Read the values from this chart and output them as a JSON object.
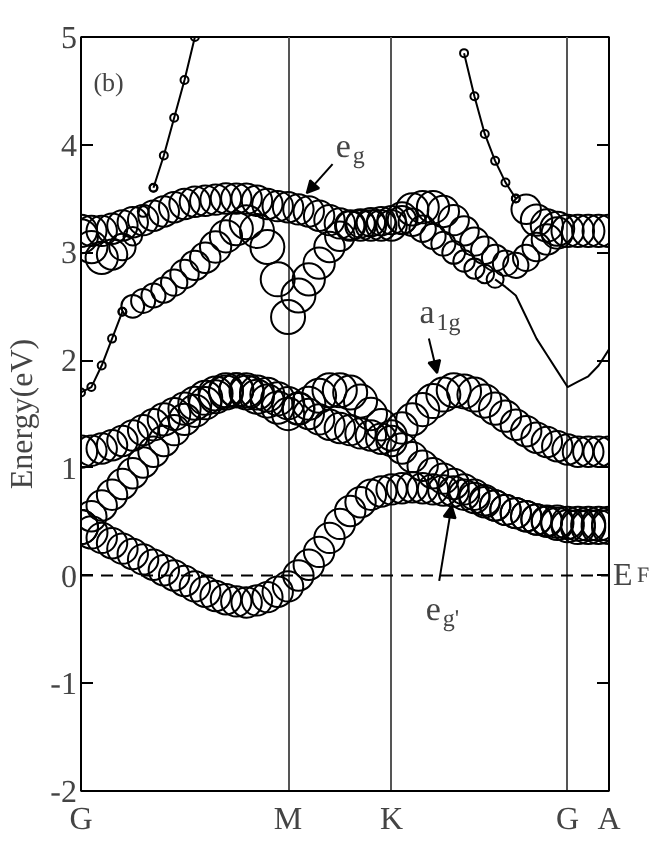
{
  "chart_data": {
    "type": "bubble",
    "ylabel": "Energy(eV)",
    "categories": [
      "G",
      null,
      null,
      null,
      null,
      null,
      null,
      null,
      null,
      null,
      null,
      null,
      null,
      null,
      null,
      null,
      null,
      null,
      null,
      null,
      "M",
      null,
      null,
      null,
      null,
      null,
      null,
      null,
      null,
      null,
      "K",
      null,
      null,
      null,
      null,
      null,
      null,
      null,
      null,
      null,
      null,
      null,
      null,
      null,
      null,
      null,
      null,
      "G",
      null,
      null,
      null,
      "A"
    ],
    "ylim": [
      -2,
      5
    ],
    "yticks": [
      -2,
      -1,
      0,
      1,
      2,
      3,
      4,
      5
    ],
    "grid": "x",
    "ref_lines": [
      {
        "axis": "y",
        "value": 0,
        "label": "E$_{F}$",
        "line_style": "dashed",
        "color": "#000000"
      }
    ],
    "annotations": [
      "(b)",
      "e$_{g}$",
      "a$_{1g}$",
      {
        "text": "e$_{g'}$",
        "y": 0.65
      }
    ],
    "series": [
      {
        "color": "#000000",
        "values": [
          0.45,
          0.4,
          0.35,
          0.3,
          0.25,
          0.2,
          0.15,
          0.1,
          0.05,
          0,
          -0.05,
          -0.1,
          -0.15,
          -0.19,
          -0.22,
          -0.24,
          -0.25,
          -0.23,
          -0.2,
          -0.15,
          -0.1,
          0,
          0.1,
          0.22,
          0.35,
          0.48,
          0.6,
          0.68,
          0.75,
          0.78,
          0.8,
          0.81,
          0.82,
          0.81,
          0.8,
          0.79,
          0.78,
          0.75,
          0.72,
          0.68,
          0.65,
          0.61,
          0.58,
          0.55,
          0.52,
          0.5,
          0.48,
          0.46,
          0.45,
          0.45,
          0.45,
          0.45
        ],
        "sizes": [
          1,
          0.9,
          0.8,
          0.8,
          0.8,
          0.8,
          0.8,
          0.8,
          0.8,
          0.8,
          0.8,
          0.8,
          0.8,
          0.8,
          0.8,
          0.8,
          0.8,
          0.8,
          0.8,
          0.8,
          0.8,
          0.8,
          0.8,
          0.8,
          0.8,
          0.8,
          0.8,
          0.8,
          0.8,
          0.8,
          0.8,
          0.8,
          0.8,
          0.8,
          0.8,
          0.8,
          0.8,
          0.8,
          0.8,
          0.8,
          0.8,
          0.8,
          0.8,
          0.8,
          0.8,
          0.8,
          0.9,
          0.9,
          1,
          1,
          1,
          1
        ]
      },
      {
        "color": "#000000",
        "values": [
          0.45,
          0.55,
          0.65,
          0.75,
          0.85,
          0.95,
          1.05,
          1.15,
          1.25,
          1.35,
          1.45,
          1.53,
          1.6,
          1.66,
          1.7,
          1.72,
          1.72,
          1.7,
          1.68,
          1.64,
          1.6,
          1.55,
          1.5,
          1.45,
          1.4,
          1.37,
          1.35,
          1.32,
          1.3,
          1.27,
          1.25,
          1.18,
          1.1,
          1.02,
          0.95,
          0.9,
          0.85,
          0.8,
          0.75,
          0.7,
          0.65,
          0.61,
          0.58,
          0.55,
          0.52,
          0.51,
          0.5,
          0.49,
          0.48,
          0.48,
          0.48,
          0.48
        ],
        "sizes": [
          1,
          0.8,
          0.8,
          0.8,
          0.8,
          0.8,
          0.8,
          0.8,
          0.8,
          0.8,
          0.85,
          0.9,
          0.9,
          0.95,
          1,
          1,
          1,
          1,
          1,
          0.95,
          0.9,
          0.85,
          0.8,
          0.8,
          0.8,
          0.8,
          0.8,
          0.8,
          0.8,
          0.8,
          0.8,
          0.8,
          0.8,
          0.8,
          0.8,
          0.8,
          0.8,
          0.8,
          0.8,
          0.8,
          0.8,
          0.8,
          0.8,
          0.8,
          0.8,
          0.8,
          0.9,
          0.9,
          1,
          1,
          1,
          1
        ]
      },
      {
        "color": "#000000",
        "values": [
          1.15,
          1.16,
          1.18,
          1.21,
          1.25,
          1.3,
          1.35,
          1.4,
          1.45,
          1.5,
          1.55,
          1.6,
          1.65,
          1.69,
          1.72,
          1.72,
          1.7,
          1.66,
          1.62,
          1.56,
          1.5,
          1.55,
          1.6,
          1.67,
          1.72,
          1.72,
          1.7,
          1.62,
          1.5,
          1.4,
          1.3,
          1.37,
          1.45,
          1.54,
          1.62,
          1.68,
          1.72,
          1.71,
          1.68,
          1.62,
          1.55,
          1.48,
          1.4,
          1.34,
          1.28,
          1.24,
          1.2,
          1.17,
          1.15,
          1.15,
          1.15,
          1.15
        ],
        "sizes": [
          0.9,
          0.8,
          0.8,
          0.8,
          0.8,
          0.8,
          0.8,
          0.85,
          0.9,
          0.9,
          0.9,
          0.95,
          1,
          1,
          1,
          1,
          1,
          1,
          0.95,
          0.9,
          0.9,
          0.9,
          0.95,
          1,
          1,
          1,
          1,
          0.95,
          0.9,
          0.85,
          0.8,
          0.85,
          0.9,
          0.95,
          1,
          1,
          1,
          1,
          1,
          0.95,
          0.9,
          0.85,
          0.8,
          0.8,
          0.8,
          0.8,
          0.8,
          0.8,
          0.8,
          0.8,
          0.8,
          0.8
        ]
      },
      {
        "color": "#000000",
        "values": [
          3.2,
          3.2,
          3.2,
          3.22,
          3.25,
          3.28,
          3.3,
          3.34,
          3.38,
          3.42,
          3.45,
          3.47,
          3.48,
          3.49,
          3.5,
          3.5,
          3.5,
          3.48,
          3.45,
          3.43,
          3.42,
          3.4,
          3.38,
          3.34,
          3.3,
          3.27,
          3.25,
          3.25,
          3.25,
          3.25,
          3.25,
          3.32,
          3.4,
          3.42,
          3.42,
          3.38,
          3.3,
          3.2,
          3.1,
          3.02,
          2.95,
          2.9,
          2.88,
          2.95,
          3.05,
          3.12,
          3.18,
          3.2,
          3.2,
          3.2,
          3.2,
          3.2
        ],
        "sizes": [
          0.9,
          0.8,
          0.8,
          0.8,
          0.8,
          0.8,
          0.8,
          0.8,
          0.8,
          0.8,
          0.8,
          0.8,
          0.8,
          0.8,
          0.8,
          0.8,
          0.8,
          0.8,
          0.8,
          0.8,
          0.8,
          0.8,
          0.8,
          0.8,
          0.8,
          0.8,
          0.8,
          0.8,
          0.8,
          0.8,
          0.8,
          0.85,
          0.9,
          0.9,
          0.9,
          0.85,
          0.8,
          0.75,
          0.7,
          0.65,
          0.6,
          0.55,
          0.55,
          0.6,
          0.7,
          0.8,
          0.85,
          0.9,
          0.9,
          0.9,
          0.9,
          0.9
        ]
      },
      {
        "color": "#000000",
        "values": [
          3.15,
          3.05,
          2.95,
          2.98,
          3.05,
          3.15,
          3.38,
          3.6,
          null,
          null,
          null,
          null,
          null,
          null,
          null,
          null,
          null,
          null,
          null,
          null,
          null,
          null,
          null,
          null,
          null,
          null,
          null,
          null,
          null,
          null,
          null,
          null,
          null,
          null,
          null,
          null,
          null,
          null,
          null,
          null,
          null,
          null,
          null,
          null,
          null,
          null,
          null,
          null,
          null,
          null,
          null,
          null
        ],
        "sizes": [
          1,
          0.9,
          0.9,
          0.8,
          0.6,
          0.3,
          0.1,
          0.05,
          null,
          null,
          null,
          null,
          null,
          null,
          null,
          null,
          null,
          null,
          null,
          null,
          null,
          null,
          null,
          null,
          null,
          null,
          null,
          null,
          null,
          null,
          null,
          null,
          null,
          null,
          null,
          null,
          null,
          null,
          null,
          null,
          null,
          null,
          null,
          null,
          null,
          null,
          null,
          null,
          null,
          null,
          null,
          null
        ]
      },
      {
        "type": "line",
        "color": "#000000",
        "marker": "circle",
        "values": [
          null,
          null,
          null,
          null,
          null,
          null,
          null,
          3.6,
          3.9,
          4.25,
          4.6,
          5.0,
          null,
          null,
          null,
          null,
          null,
          null,
          null,
          null,
          null,
          null,
          null,
          null,
          null,
          null,
          null,
          null,
          null,
          null,
          null,
          null,
          null,
          null,
          null,
          null,
          null,
          null,
          null,
          null,
          null,
          null,
          null,
          null,
          null,
          null,
          null,
          null,
          null,
          null,
          null,
          null
        ]
      },
      {
        "type": "line",
        "color": "#000000",
        "marker": "circle",
        "values": [
          1.7,
          1.75,
          1.95,
          2.2,
          2.45,
          null,
          null,
          null,
          null,
          null,
          null,
          null,
          null,
          null,
          null,
          null,
          null,
          null,
          null,
          null,
          null,
          null,
          null,
          null,
          null,
          null,
          null,
          null,
          null,
          null,
          null,
          null,
          null,
          null,
          null,
          null,
          null,
          null,
          null,
          null,
          null,
          null,
          null,
          null,
          null,
          null,
          null,
          null,
          null,
          null,
          null,
          null
        ]
      },
      {
        "color": "#000000",
        "values": [
          null,
          null,
          null,
          null,
          2.45,
          2.5,
          2.55,
          2.6,
          2.65,
          2.72,
          2.8,
          2.88,
          2.95,
          3.05,
          3.15,
          3.22,
          3.28,
          3.2,
          3.05,
          2.75,
          2.4,
          2.6,
          2.75,
          2.9,
          3.05,
          3.15,
          3.25,
          3.27,
          3.28,
          3.29,
          3.3,
          3.3,
          3.28,
          3.22,
          3.15,
          3.08,
          3.0,
          2.92,
          2.85,
          2.8,
          2.75,
          null,
          null,
          null,
          null,
          null,
          null,
          null,
          null,
          null,
          null,
          null
        ],
        "sizes": [
          null,
          null,
          null,
          null,
          0.05,
          0.45,
          0.5,
          0.5,
          0.55,
          0.6,
          0.7,
          0.75,
          0.8,
          0.85,
          0.9,
          0.95,
          1,
          1,
          1,
          1,
          1,
          1,
          0.9,
          0.85,
          0.8,
          0.75,
          0.7,
          0.7,
          0.7,
          0.7,
          0.7,
          0.7,
          0.65,
          0.6,
          0.55,
          0.5,
          0.45,
          0.4,
          0.35,
          0.3,
          0.25,
          null,
          null,
          null,
          null,
          null,
          null,
          null,
          null,
          null,
          null,
          null
        ]
      },
      {
        "type": "line",
        "color": "#000000",
        "values": [
          null,
          null,
          null,
          null,
          null,
          null,
          null,
          null,
          null,
          null,
          null,
          null,
          null,
          null,
          null,
          null,
          null,
          null,
          null,
          null,
          null,
          null,
          null,
          null,
          null,
          null,
          null,
          null,
          null,
          null,
          null,
          null,
          null,
          null,
          null,
          null,
          null,
          null,
          null,
          null,
          2.75,
          2.68,
          2.6,
          2.4,
          2.2,
          2.05,
          1.9,
          1.75,
          1.8,
          1.85,
          1.95,
          2.1
        ]
      },
      {
        "type": "line",
        "color": "#000000",
        "marker": "circle",
        "values": [
          null,
          null,
          null,
          null,
          null,
          null,
          null,
          null,
          null,
          null,
          null,
          null,
          null,
          null,
          null,
          null,
          null,
          null,
          null,
          null,
          null,
          null,
          null,
          null,
          null,
          null,
          null,
          null,
          null,
          null,
          null,
          null,
          null,
          null,
          null,
          null,
          null,
          4.85,
          4.45,
          4.1,
          3.85,
          3.65,
          3.5,
          null,
          null,
          null,
          null,
          null,
          null,
          null,
          null,
          null
        ]
      },
      {
        "color": "#000000",
        "values": [
          null,
          null,
          null,
          null,
          null,
          null,
          null,
          null,
          null,
          null,
          null,
          null,
          null,
          null,
          null,
          null,
          null,
          null,
          null,
          null,
          null,
          null,
          null,
          null,
          null,
          null,
          null,
          null,
          null,
          null,
          null,
          null,
          null,
          null,
          null,
          null,
          null,
          null,
          null,
          null,
          null,
          null,
          3.5,
          3.4,
          3.3,
          3.25,
          3.22,
          null,
          null,
          null,
          null,
          null
        ],
        "sizes": [
          null,
          null,
          null,
          null,
          null,
          null,
          null,
          null,
          null,
          null,
          null,
          null,
          null,
          null,
          null,
          null,
          null,
          null,
          null,
          null,
          null,
          null,
          null,
          null,
          null,
          null,
          null,
          null,
          null,
          null,
          null,
          null,
          null,
          null,
          null,
          null,
          null,
          null,
          null,
          null,
          null,
          null,
          0.05,
          0.75,
          0.85,
          0.9,
          1,
          null,
          null,
          null,
          null,
          null
        ]
      }
    ]
  }
}
